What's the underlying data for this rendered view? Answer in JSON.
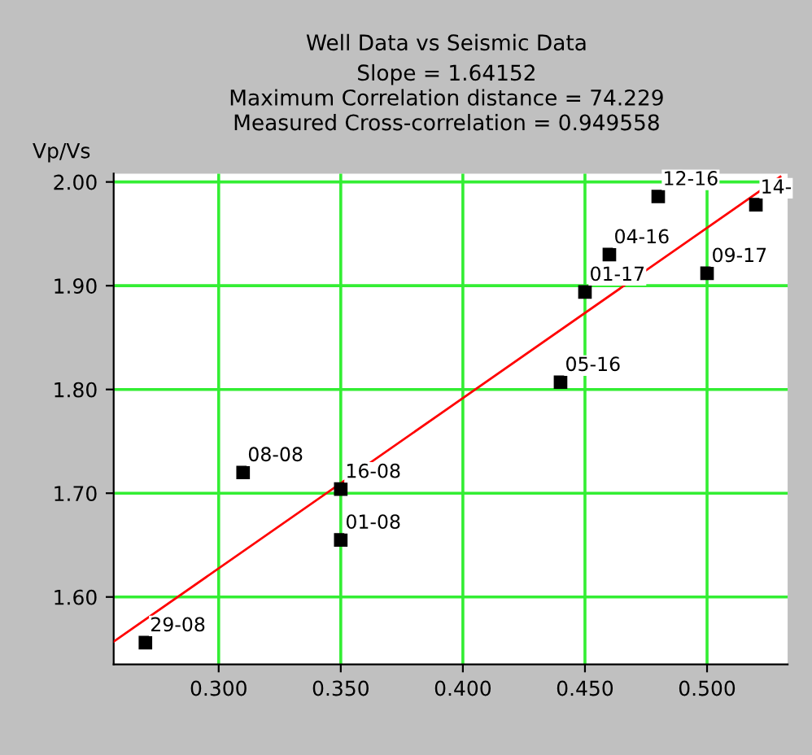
{
  "chart_data": {
    "type": "scatter",
    "title": "Well Data vs Seismic Data",
    "subtitle": "Slope = 1.64152\nMaximum Correlation distance = 74.229\nMeasured Cross-correlation = 0.949558",
    "ylabel": "Vp/Vs",
    "xlim": [
      0.257,
      0.533
    ],
    "ylim": [
      1.535,
      2.008
    ],
    "xticks": [
      {
        "value": 0.3,
        "label": "0.300"
      },
      {
        "value": 0.35,
        "label": "0.350"
      },
      {
        "value": 0.4,
        "label": "0.400"
      },
      {
        "value": 0.45,
        "label": "0.450"
      },
      {
        "value": 0.5,
        "label": "0.500"
      }
    ],
    "yticks": [
      {
        "value": 1.6,
        "label": "1.60"
      },
      {
        "value": 1.7,
        "label": "1.70"
      },
      {
        "value": 1.8,
        "label": "1.80"
      },
      {
        "value": 1.9,
        "label": "1.90"
      },
      {
        "value": 2.0,
        "label": "2.00"
      }
    ],
    "grid": true,
    "marker": "square",
    "series": [
      {
        "color": "#000000",
        "x": [
          0.27,
          0.31,
          0.35,
          0.35,
          0.44,
          0.45,
          0.46,
          0.48,
          0.5,
          0.52
        ],
        "values": [
          1.556,
          1.72,
          1.704,
          1.655,
          1.807,
          1.894,
          1.93,
          1.986,
          1.912,
          1.978
        ]
      },
      {
        "type": "line",
        "color": "#ff0000",
        "marker": "none",
        "x": [
          0.257,
          0.53
        ],
        "values": [
          1.557,
          2.005
        ]
      }
    ],
    "annotations": [
      {
        "text": "29-08",
        "x": 0.27,
        "y": 1.556
      },
      {
        "text": "08-08",
        "x": 0.31,
        "y": 1.72
      },
      {
        "text": "16-08",
        "x": 0.35,
        "y": 1.704
      },
      {
        "text": "01-08",
        "x": 0.35,
        "y": 1.655
      },
      {
        "text": "05-16",
        "x": 0.44,
        "y": 1.807
      },
      {
        "text": "01-17",
        "x": 0.45,
        "y": 1.894
      },
      {
        "text": "04-16",
        "x": 0.46,
        "y": 1.93
      },
      {
        "text": "12-16",
        "x": 0.48,
        "y": 1.986
      },
      {
        "text": "09-17",
        "x": 0.5,
        "y": 1.912
      },
      {
        "text": "14-",
        "x": 0.52,
        "y": 1.978
      }
    ]
  }
}
